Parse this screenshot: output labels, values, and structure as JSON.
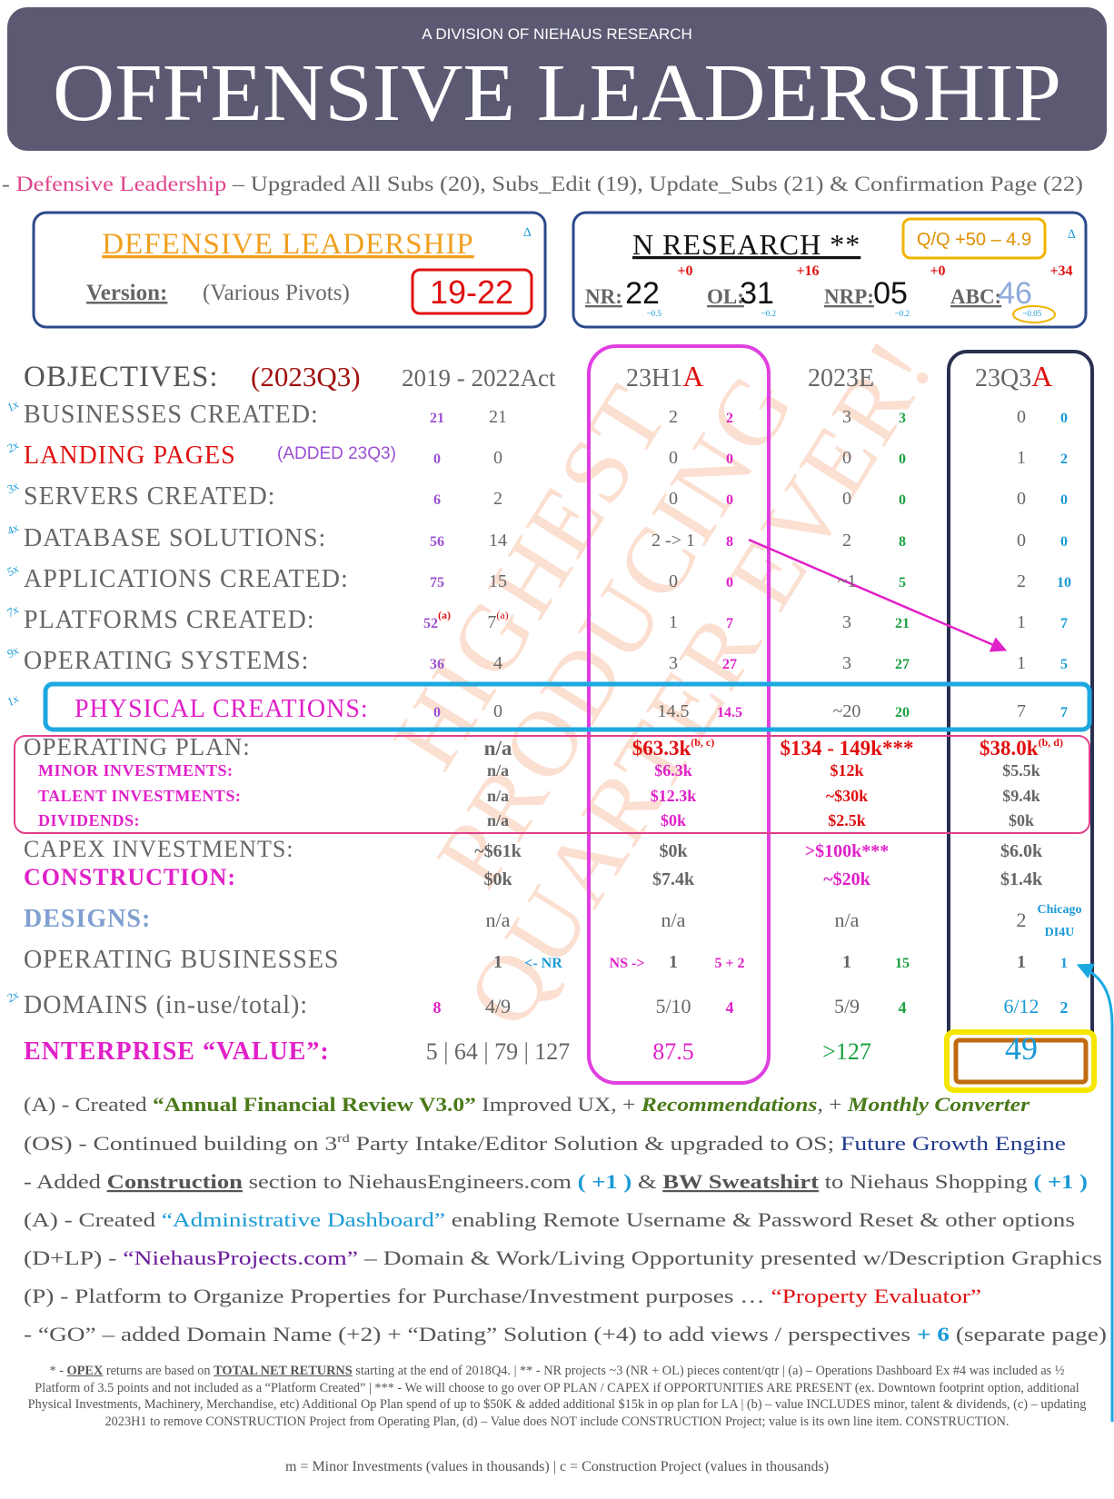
{
  "header": {
    "division": "A DIVISION OF NIEHAUS RESEARCH",
    "title": "OFFENSIVE LEADERSHIP"
  },
  "subtitle": [
    "- ",
    "Defensive Leadership",
    " – Upgraded All Subs (20), Subs_Edit (19), Update_Subs (21) & Confirmation Page (22)"
  ],
  "defensive_box": {
    "title": "DEFENSIVE LEADERSHIP",
    "corner": "∆",
    "version_label": "Version:",
    "version_note": "(Various Pivots)",
    "version": "19-22"
  },
  "research_box": {
    "title": "N RESEARCH **",
    "corner": "∆",
    "qq": "Q/Q +50 – 4.9",
    "metrics": [
      {
        "label": "NR:",
        "value": "22",
        "delta": "+0",
        "sub": "~0.5"
      },
      {
        "label": "OL:",
        "value": "31",
        "delta": "+16",
        "sub": "~0.2"
      },
      {
        "label": "NRP:",
        "value": "05",
        "delta": "+0",
        "sub": "~0.2"
      },
      {
        "label": "ABC:",
        "value": "46",
        "delta": "+34",
        "sub": "~0.05"
      }
    ]
  },
  "table": {
    "header": {
      "objectives": "OBJECTIVES:",
      "period": "(2023Q3)",
      "hist": "2019 - 2022Act",
      "h1": "23H1",
      "h1_flag": "A",
      "e": "2023E",
      "q3": "23Q3",
      "q3_flag": "A"
    },
    "rows": [
      {
        "marker": "1x",
        "label": "BUSINESSES CREATED:",
        "hist_small": "21",
        "hist": "21",
        "h1": "2",
        "h1_new": "2",
        "e": "3",
        "e_new": "3",
        "q3": "0",
        "q3_new": "0"
      },
      {
        "marker": "2x",
        "label": "LANDING PAGES",
        "note": "(ADDED 23Q3)",
        "hist_small": "0",
        "hist": "0",
        "h1": "0",
        "h1_new": "0",
        "e": "0",
        "e_new": "0",
        "q3": "1",
        "q3_new": "2"
      },
      {
        "marker": "3x",
        "label": "SERVERS CREATED:",
        "hist_small": "6",
        "hist": "2",
        "h1": "0",
        "h1_new": "0",
        "e": "0",
        "e_new": "0",
        "q3": "0",
        "q3_new": "0"
      },
      {
        "marker": "4x",
        "label": "DATABASE SOLUTIONS:",
        "hist_small": "56",
        "hist": "14",
        "h1": "2 -> 1",
        "h1_new": "8",
        "e": "2",
        "e_new": "8",
        "q3": "0",
        "q3_new": "0"
      },
      {
        "marker": "5x",
        "label": "APPLICATIONS CREATED:",
        "hist_small": "75",
        "hist": "15",
        "h1": "0",
        "h1_new": "0",
        "e": "~1",
        "e_new": "5",
        "q3": "2",
        "q3_new": "10"
      },
      {
        "marker": "7x",
        "label": "PLATFORMS CREATED:",
        "hist_small": "52",
        "hist_small_sup": "(a)",
        "hist": "7",
        "hist_sup": "(a)",
        "h1": "1",
        "h1_new": "7",
        "e": "3",
        "e_new": "21",
        "q3": "1",
        "q3_new": "7"
      },
      {
        "marker": "9x",
        "label": "OPERATING SYSTEMS:",
        "hist_small": "36",
        "hist": "4",
        "h1": "3",
        "h1_new": "27",
        "e": "3",
        "e_new": "27",
        "q3": "1",
        "q3_new": "5"
      },
      {
        "marker": "1x",
        "label": "PHYSICAL CREATIONS:",
        "hist_small": "0",
        "hist": "0",
        "h1": "14.5",
        "h1_new": "14.5",
        "e": "~20",
        "e_new": "20",
        "q3": "7",
        "q3_new": "7"
      },
      {
        "label": "OPERATING PLAN:",
        "hist": "n/a",
        "h1": "$63.3k",
        "h1_sup": "(b, c)",
        "e": "$134 - 149k***",
        "q3": "$38.0k",
        "q3_sup": "(b, d)"
      },
      {
        "label": "MINOR INVESTMENTS:",
        "hist": "n/a",
        "h1": "$6.3k",
        "e": "$12k",
        "q3": "$5.5k"
      },
      {
        "label": "TALENT INVESTMENTS:",
        "hist": "n/a",
        "h1": "$12.3k",
        "e": "~$30k",
        "q3": "$9.4k"
      },
      {
        "label": "DIVIDENDS:",
        "hist": "n/a",
        "h1": "$0k",
        "e": "$2.5k",
        "q3": "$0k"
      },
      {
        "label": "CAPEX INVESTMENTS:",
        "hist": "~$61k",
        "h1": "$0k",
        "e": ">$100k***",
        "q3": "$6.0k"
      },
      {
        "label": "CONSTRUCTION:",
        "hist": "$0k",
        "h1": "$7.4k",
        "e": "~$20k",
        "q3": "$1.4k"
      },
      {
        "label": "DESIGNS:",
        "hist": "n/a",
        "h1": "n/a",
        "e": "n/a",
        "q3": "2",
        "q3_note": "Chicago",
        "q3_note2": "DI4U"
      },
      {
        "label": "OPERATING BUSINESSES",
        "hist": "1",
        "hist_note": "<- NR",
        "h1_note": "NS ->",
        "h1": "1",
        "h1_new": "5 + 2",
        "e": "1",
        "e_new": "15",
        "q3": "1",
        "q3_new": "1"
      },
      {
        "marker": "2x",
        "label": "DOMAINS (in-use/total):",
        "hist_small": "8",
        "hist": "4/9",
        "h1": "5/10",
        "h1_new": "4",
        "e": "5/9",
        "e_new": "4",
        "q3": "6/12",
        "q3_new": "2"
      },
      {
        "label": "ENTERPRISE “VALUE”:",
        "hist": "5 | 64 | 79 | 127",
        "h1": "87.5",
        "e": ">127",
        "q3": "49"
      }
    ]
  },
  "watermark": [
    "HIGHEST",
    "PRODUCING",
    "QUARTER EVER!"
  ],
  "notes": [
    [
      "(A) - Created ",
      "“Annual Financial Review V3.0”",
      " Improved UX, + ",
      "Recommendations",
      ", + ",
      "Monthly Converter"
    ],
    [
      "(OS) - Continued building on 3",
      "rd",
      " Party Intake/Editor Solution & upgraded to OS; ",
      "Future Growth Engine"
    ],
    [
      "- Added ",
      "Construction",
      " section to NiehausEngineers.com ",
      "( +1 )",
      " & ",
      "BW Sweatshirt",
      " to Niehaus Shopping ",
      "( +1 )"
    ],
    [
      "(A) - Created ",
      "“Administrative Dashboard”",
      " enabling Remote Username & Password Reset & other options"
    ],
    [
      "(D+LP) - ",
      "“NiehausProjects.com”",
      " – Domain & Work/Living Opportunity presented w/Description Graphics"
    ],
    [
      "(P) - Platform to Organize Properties for Purchase/Investment purposes … ",
      "“Property Evaluator”"
    ],
    [
      "- “GO” – added Domain Name (+2) + “Dating” Solution (+4) to add views / perspectives ",
      "+ 6",
      "  (separate page)"
    ]
  ],
  "footnote": [
    "* - ",
    "OPEX",
    " returns are based on ",
    "TOTAL NET RETURNS",
    " starting at the end of 2018Q4.  | ** - NR projects ~3 (NR + OL) pieces content/qtr  | (a) – Operations Dashboard Ex #4 was included as ½ Platform of 3.5 points and not included as a “Platform Created” | *** - We will choose to go over OP PLAN / CAPEX if OPPORTUNITIES ARE PRESENT (ex. Downtown footprint option, additional Physical Investments, Machinery, Merchandise, etc)  Additional Op Plan spend of up to $50K & added additional $15k in op plan for LA | (b) – value INCLUDES minor, talent & dividends, (c) – updating 2023H1 to remove CONSTRUCTION Project from Operating Plan, (d) – Value does NOT include CONSTRUCTION Project; value is its own line item. CONSTRUCTION."
  ],
  "legend": "m = Minor Investments (values in thousands) | c = Construction Project (values in thousands)"
}
